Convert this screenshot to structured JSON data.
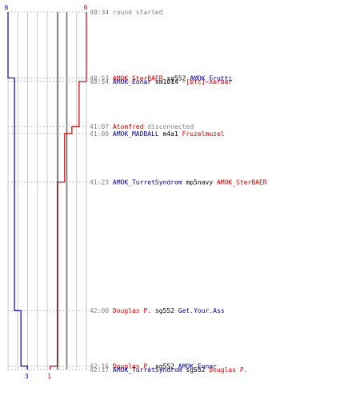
{
  "chart_data": {
    "type": "line",
    "time_start": "40:34",
    "time_end": "42:17",
    "teams": [
      {
        "name": "blue",
        "color": "#0000cc",
        "start_count": "6",
        "end_count": "3",
        "steps": [
          {
            "time": "40:53",
            "count": 5
          },
          {
            "time": "42:00",
            "count": 4
          },
          {
            "time": "42:16",
            "count": 3
          }
        ]
      },
      {
        "name": "red",
        "color": "#cc0000",
        "start_count": "6",
        "end_count": "1",
        "steps": [
          {
            "time": "40:54",
            "count": 5
          },
          {
            "time": "41:07",
            "count": 4
          },
          {
            "time": "41:09",
            "count": 3
          },
          {
            "time": "41:23",
            "count": 2
          },
          {
            "time": "42:16",
            "count": 1
          }
        ]
      }
    ],
    "events": [
      {
        "time": "40:34",
        "parts": [
          {
            "text": "round started",
            "color": "#808080"
          }
        ]
      },
      {
        "time": "40:53",
        "parts": [
          {
            "text": "AMOK_SterBAER",
            "color": "#cc0000"
          },
          {
            "text": "sg552",
            "color": "#000000"
          },
          {
            "text": "AMOK_Frutti",
            "color": "#000099"
          }
        ]
      },
      {
        "time": "40:54",
        "parts": [
          {
            "text": "AMOK_Eonar",
            "color": "#000099"
          },
          {
            "text": "xm1014",
            "color": "#000000"
          },
          {
            "text": "-[bfc]-Xerber",
            "color": "#cc0000"
          }
        ]
      },
      {
        "time": "41:07",
        "parts": [
          {
            "text": "Atomfred",
            "color": "#cc0000"
          },
          {
            "text": "disconnected",
            "color": "#808080"
          }
        ]
      },
      {
        "time": "41:09",
        "parts": [
          {
            "text": "AMOK_MADBALL",
            "color": "#000099"
          },
          {
            "text": "m4a1",
            "color": "#000000"
          },
          {
            "text": "Fruzelmuzel",
            "color": "#cc0000"
          }
        ]
      },
      {
        "time": "41:23",
        "parts": [
          {
            "text": "AMOK_TurretSyndrom",
            "color": "#000099"
          },
          {
            "text": "mp5navy",
            "color": "#000000"
          },
          {
            "text": "AMOK_SterBAER",
            "color": "#cc0000"
          }
        ]
      },
      {
        "time": "42:00",
        "parts": [
          {
            "text": "Douglas P.",
            "color": "#cc0000"
          },
          {
            "text": "sg552",
            "color": "#000000"
          },
          {
            "text": "Get.Your.Ass",
            "color": "#000099"
          }
        ]
      },
      {
        "time": "42:16",
        "parts": [
          {
            "text": "Douglas P.",
            "color": "#cc0000"
          },
          {
            "text": "sg552",
            "color": "#000000"
          },
          {
            "text": "AMOK_Eonar",
            "color": "#000099"
          }
        ]
      },
      {
        "time": "42:17",
        "parts": [
          {
            "text": "AMOK_TurretSyndrom",
            "color": "#000099"
          },
          {
            "text": "sg552",
            "color": "#000000"
          },
          {
            "text": "Douglas P.",
            "color": "#cc0000"
          }
        ]
      }
    ],
    "colors": {
      "grid": "#c8c8c8",
      "grid_mid": "#707070",
      "dash": "#c0c0c0",
      "time_text": "#808080"
    }
  }
}
